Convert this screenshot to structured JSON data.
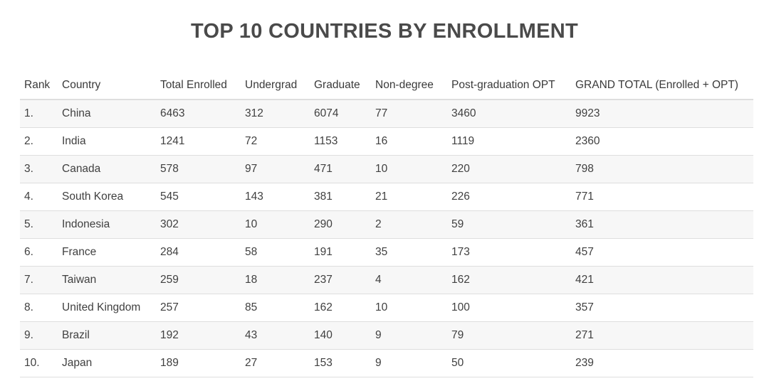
{
  "chart_data": {
    "type": "table",
    "title": "TOP 10 COUNTRIES BY ENROLLMENT",
    "columns": [
      "Rank",
      "Country",
      "Total Enrolled",
      "Undergrad",
      "Graduate",
      "Non-degree",
      "Post-graduation OPT",
      "GRAND TOTAL (Enrolled + OPT)"
    ],
    "rows": [
      [
        "1.",
        "China",
        "6463",
        "312",
        "6074",
        "77",
        "3460",
        "9923"
      ],
      [
        "2.",
        "India",
        "1241",
        "72",
        "1153",
        "16",
        "1119",
        "2360"
      ],
      [
        "3.",
        "Canada",
        "578",
        "97",
        "471",
        "10",
        "220",
        "798"
      ],
      [
        "4.",
        "South Korea",
        "545",
        "143",
        "381",
        "21",
        "226",
        "771"
      ],
      [
        "5.",
        "Indonesia",
        "302",
        "10",
        "290",
        "2",
        "59",
        "361"
      ],
      [
        "6.",
        "France",
        "284",
        "58",
        "191",
        "35",
        "173",
        "457"
      ],
      [
        "7.",
        "Taiwan",
        "259",
        "18",
        "237",
        "4",
        "162",
        "421"
      ],
      [
        "8.",
        "United Kingdom",
        "257",
        "85",
        "162",
        "10",
        "100",
        "357"
      ],
      [
        "9.",
        "Brazil",
        "192",
        "43",
        "140",
        "9",
        "79",
        "271"
      ],
      [
        "10.",
        "Japan",
        "189",
        "27",
        "153",
        "9",
        "50",
        "239"
      ]
    ],
    "colors": {
      "title": "#4a4a4a",
      "text": "#404040",
      "stripe": "#f7f7f7",
      "rule": "#dedede"
    }
  }
}
